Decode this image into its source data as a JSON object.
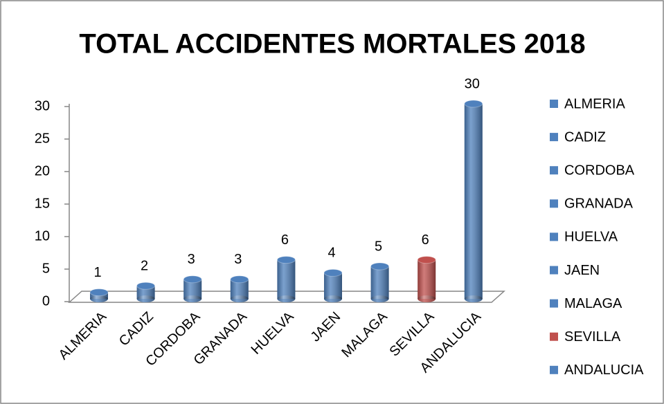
{
  "chart_data": {
    "type": "bar",
    "title": "TOTAL ACCIDENTES MORTALES 2018",
    "categories": [
      "ALMERIA",
      "CADIZ",
      "CORDOBA",
      "GRANADA",
      "HUELVA",
      "JAEN",
      "MALAGA",
      "SEVILLA",
      "ANDALUCIA"
    ],
    "values": [
      1,
      2,
      3,
      3,
      6,
      4,
      5,
      6,
      30
    ],
    "colors": [
      "#4f81bd",
      "#4f81bd",
      "#4f81bd",
      "#4f81bd",
      "#4f81bd",
      "#4f81bd",
      "#4f81bd",
      "#c0504d",
      "#4f81bd"
    ],
    "ylim": [
      0,
      30
    ],
    "yticks": [
      0,
      5,
      10,
      15,
      20,
      25,
      30
    ],
    "grid": false,
    "legend": "right"
  }
}
